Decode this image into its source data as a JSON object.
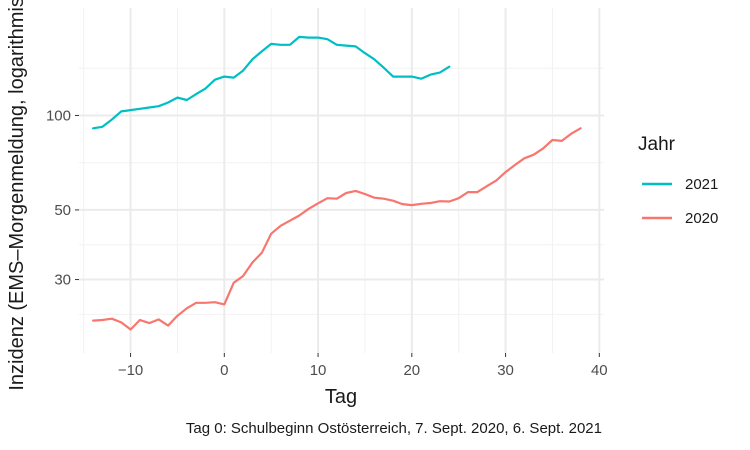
{
  "chart_data": {
    "type": "line",
    "xlabel": "Tag",
    "ylabel": "Inzidenz (EMS–Morgenmeldung, logarithmisch)",
    "caption": "Tag 0: Schulbeginn Ostösterreich, 7. Sept. 2020, 6. Sept. 2021",
    "y_scale": "log",
    "xlim": [
      -15.5,
      40.5
    ],
    "ylim": [
      17.5,
      220
    ],
    "x_ticks": [
      -10,
      0,
      10,
      20,
      30,
      40
    ],
    "x_tick_labels": [
      "−10",
      "0",
      "10",
      "20",
      "30",
      "40"
    ],
    "y_ticks": [
      30,
      50,
      100
    ],
    "y_tick_labels": [
      "30",
      "50",
      "100"
    ],
    "grid": true,
    "legend": {
      "title": "Jahr",
      "position": "right",
      "entries": [
        {
          "label": "2021",
          "color": "#00BFC4"
        },
        {
          "label": "2020",
          "color": "#F8766D"
        }
      ]
    },
    "series": [
      {
        "name": "2021",
        "color": "#00BFC4",
        "x": [
          -14,
          -13,
          -12,
          -11,
          -10,
          -9,
          -8,
          -7,
          -6,
          -5,
          -4,
          -3,
          -2,
          -1,
          0,
          1,
          2,
          3,
          4,
          5,
          6,
          7,
          8,
          9,
          10,
          11,
          12,
          13,
          14,
          15,
          16,
          17,
          18,
          19,
          20,
          21,
          22,
          23,
          24
        ],
        "y": [
          91,
          92,
          97,
          103,
          104,
          105,
          106,
          107,
          110,
          114,
          112,
          117,
          122,
          130,
          133,
          132,
          139,
          151,
          160,
          169,
          168,
          168,
          178,
          177,
          177,
          175,
          168,
          167,
          166,
          158,
          151,
          142,
          133,
          133,
          133,
          131,
          135,
          137,
          143
        ]
      },
      {
        "name": "2020",
        "color": "#F8766D",
        "x": [
          -14,
          -13,
          -12,
          -11,
          -10,
          -9,
          -8,
          -7,
          -6,
          -5,
          -4,
          -3,
          -2,
          -1,
          0,
          1,
          2,
          3,
          4,
          5,
          6,
          7,
          8,
          9,
          10,
          11,
          12,
          13,
          14,
          15,
          16,
          17,
          18,
          19,
          20,
          21,
          22,
          23,
          24,
          25,
          26,
          27,
          28,
          29,
          30,
          31,
          32,
          33,
          34,
          35,
          36,
          37,
          38
        ],
        "y": [
          22.2,
          22.3,
          22.5,
          21.9,
          20.8,
          22.3,
          21.8,
          22.4,
          21.4,
          23.0,
          24.3,
          25.3,
          25.3,
          25.4,
          25.0,
          29.3,
          30.8,
          34.0,
          36.5,
          42.0,
          44.5,
          46.2,
          48.0,
          50.4,
          52.5,
          54.5,
          54.3,
          56.6,
          57.5,
          56.2,
          54.7,
          54.3,
          53.5,
          52.2,
          51.8,
          52.3,
          52.6,
          53.3,
          53.2,
          54.5,
          57.0,
          57.0,
          59.5,
          62.0,
          66.0,
          69.5,
          73.0,
          75.0,
          78.5,
          83.5,
          83.0,
          87.5,
          91.0
        ]
      }
    ]
  }
}
